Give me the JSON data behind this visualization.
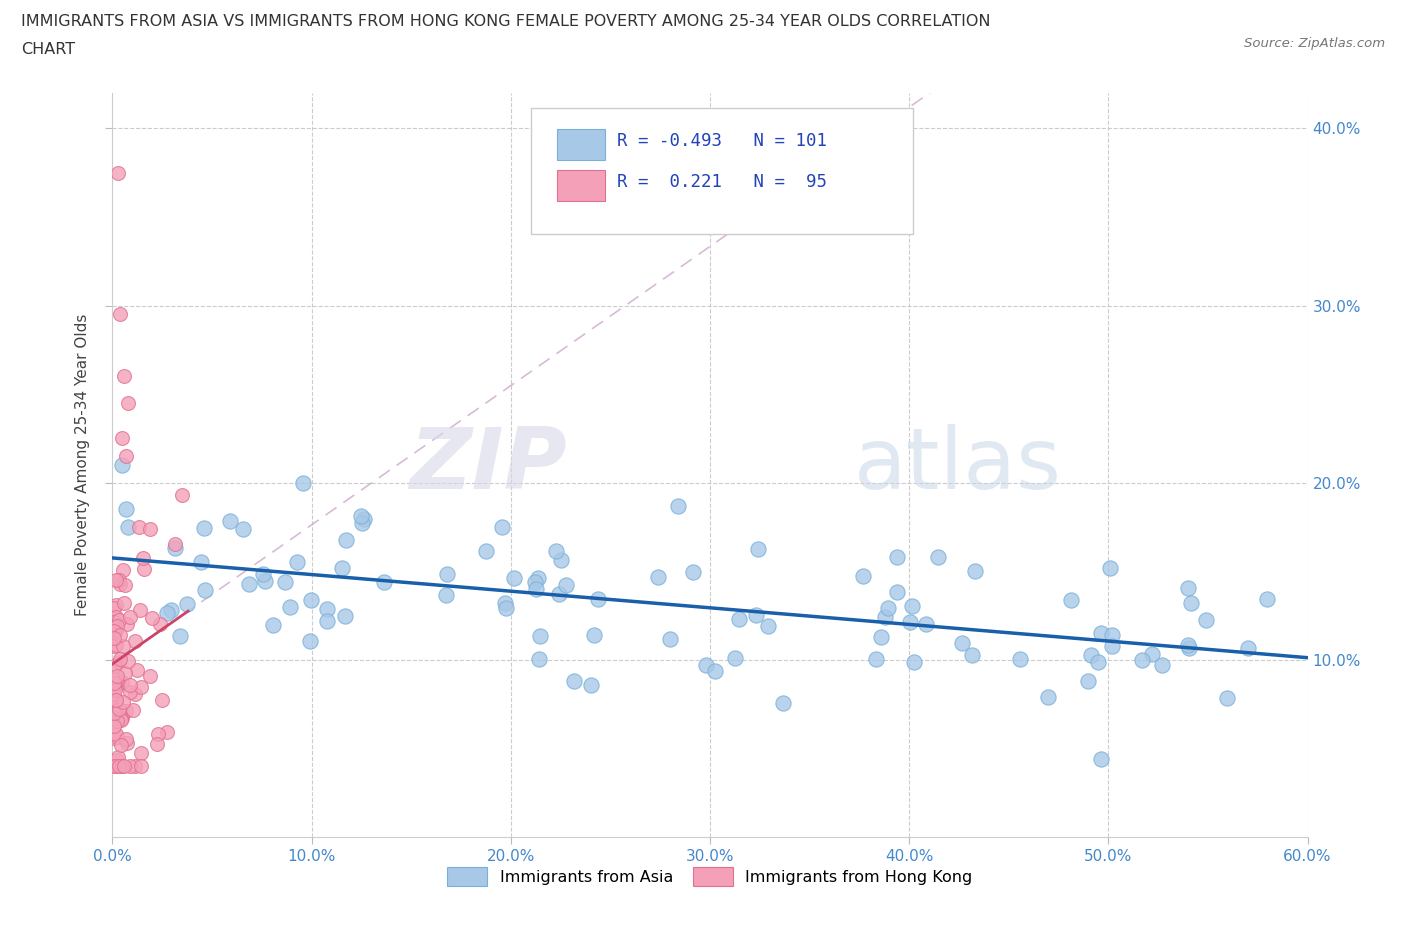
{
  "title_line1": "IMMIGRANTS FROM ASIA VS IMMIGRANTS FROM HONG KONG FEMALE POVERTY AMONG 25-34 YEAR OLDS CORRELATION",
  "title_line2": "CHART",
  "source_text": "Source: ZipAtlas.com",
  "ylabel": "Female Poverty Among 25-34 Year Olds",
  "xlim": [
    0.0,
    0.6
  ],
  "ylim": [
    0.0,
    0.42
  ],
  "xtick_labels": [
    "0.0%",
    "10.0%",
    "20.0%",
    "30.0%",
    "40.0%",
    "50.0%",
    "60.0%"
  ],
  "xtick_values": [
    0.0,
    0.1,
    0.2,
    0.3,
    0.4,
    0.5,
    0.6
  ],
  "ytick_labels_right": [
    "10.0%",
    "20.0%",
    "30.0%",
    "40.0%"
  ],
  "ytick_values": [
    0.1,
    0.2,
    0.3,
    0.4
  ],
  "r_asia": -0.493,
  "n_asia": 101,
  "r_hk": 0.221,
  "n_hk": 95,
  "asia_color": "#a8c8e8",
  "asia_edge_color": "#7ab0d8",
  "hk_color": "#f4a0b8",
  "hk_edge_color": "#e07090",
  "asia_line_color": "#1a5faa",
  "hk_line_color": "#cc4466",
  "hk_trend_color": "#ccbbcc",
  "watermark_zip": "ZIP",
  "watermark_atlas": "atlas",
  "legend_label_asia": "Immigrants from Asia",
  "legend_label_hk": "Immigrants from Hong Kong",
  "tick_color": "#4488cc"
}
